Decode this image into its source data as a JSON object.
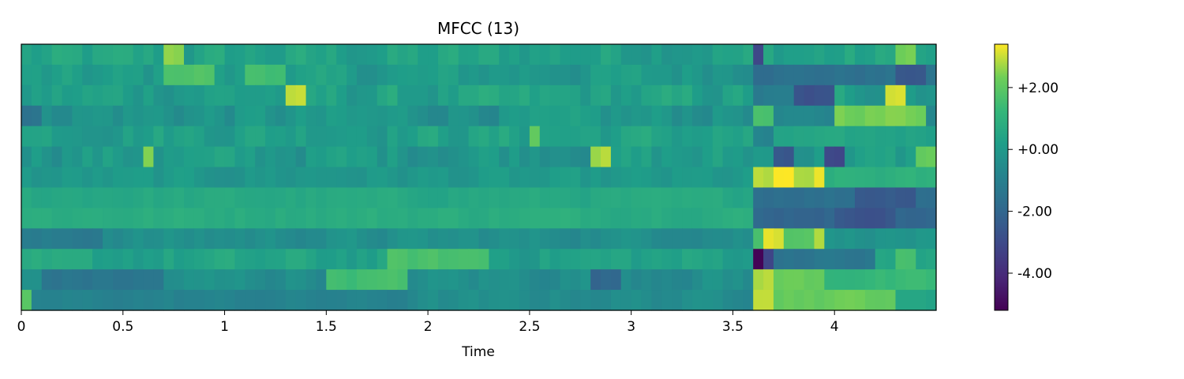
{
  "chart_data": {
    "type": "heatmap",
    "title": "MFCC (13)",
    "xlabel": "Time",
    "ylabel": "",
    "xlim": [
      0,
      4.5
    ],
    "x_ticks": [
      0,
      0.5,
      1,
      1.5,
      2,
      2.5,
      3,
      3.5,
      4
    ],
    "x_tick_labels": [
      "0",
      "0.5",
      "1",
      "1.5",
      "2",
      "2.5",
      "3",
      "3.5",
      "4"
    ],
    "n_coefficients": 13,
    "frame_duration": 0.05,
    "colormap": "viridis",
    "colorbar": {
      "range": [
        -5.2,
        3.4
      ],
      "ticks": [
        2,
        0,
        -2,
        -4
      ],
      "tick_labels": [
        "+2.00",
        "+0.00",
        "-2.00",
        "-4.00"
      ]
    },
    "rows": [
      {
        "base": 0.3,
        "var": 0.9,
        "segments": [
          [
            0.72,
            0.82,
            2.6
          ],
          [
            3.6,
            3.66,
            -3.2
          ],
          [
            4.3,
            4.4,
            2.4
          ]
        ]
      },
      {
        "base": 0.0,
        "var": 0.8,
        "segments": [
          [
            0.7,
            0.95,
            1.8
          ],
          [
            1.1,
            1.3,
            1.6
          ],
          [
            3.6,
            4.5,
            -1.6
          ],
          [
            4.3,
            4.45,
            -2.5
          ]
        ]
      },
      {
        "base": 0.2,
        "var": 0.9,
        "segments": [
          [
            1.3,
            1.38,
            2.8
          ],
          [
            3.6,
            3.8,
            -1.2
          ],
          [
            3.8,
            4.0,
            -2.8
          ],
          [
            4.25,
            4.35,
            3.2
          ]
        ]
      },
      {
        "base": -0.2,
        "var": 0.8,
        "segments": [
          [
            0.0,
            0.1,
            -1.6
          ],
          [
            3.6,
            3.7,
            1.6
          ],
          [
            3.7,
            4.0,
            -0.8
          ],
          [
            4.0,
            4.45,
            2.4
          ]
        ]
      },
      {
        "base": 0.3,
        "var": 0.8,
        "segments": [
          [
            0.28,
            0.32,
            2.6
          ],
          [
            2.5,
            2.56,
            2.2
          ],
          [
            3.6,
            3.7,
            -1.0
          ],
          [
            3.7,
            4.5,
            0.4
          ]
        ]
      },
      {
        "base": 0.0,
        "var": 0.9,
        "segments": [
          [
            0.6,
            0.64,
            2.6
          ],
          [
            2.82,
            2.9,
            2.8
          ],
          [
            3.7,
            3.8,
            -2.5
          ],
          [
            3.95,
            4.05,
            -3.0
          ],
          [
            4.4,
            4.5,
            2.2
          ]
        ]
      },
      {
        "base": -0.1,
        "var": 0.5,
        "segments": [
          [
            3.6,
            3.7,
            2.8
          ],
          [
            3.7,
            3.78,
            3.4
          ],
          [
            3.78,
            3.88,
            2.6
          ],
          [
            3.88,
            3.95,
            3.2
          ],
          [
            3.95,
            4.5,
            0.9
          ]
        ]
      },
      {
        "base": 0.6,
        "var": 0.3,
        "segments": [
          [
            3.6,
            4.5,
            -1.6
          ],
          [
            4.1,
            4.4,
            -2.4
          ]
        ]
      },
      {
        "base": 0.8,
        "var": 0.3,
        "segments": [
          [
            3.6,
            4.5,
            -2.0
          ],
          [
            4.0,
            4.3,
            -2.6
          ]
        ]
      },
      {
        "base": -0.4,
        "var": 0.5,
        "segments": [
          [
            0.0,
            0.4,
            -1.2
          ],
          [
            3.6,
            3.66,
            1.6
          ],
          [
            3.66,
            3.75,
            3.2
          ],
          [
            3.75,
            3.88,
            2.0
          ],
          [
            3.88,
            3.95,
            3.0
          ],
          [
            3.95,
            4.5,
            -0.2
          ]
        ]
      },
      {
        "base": 0.3,
        "var": 0.7,
        "segments": [
          [
            1.8,
            2.3,
            1.6
          ],
          [
            3.6,
            3.65,
            -5.2
          ],
          [
            3.65,
            3.72,
            -3.2
          ],
          [
            3.72,
            4.2,
            -1.4
          ],
          [
            4.3,
            4.4,
            1.6
          ]
        ]
      },
      {
        "base": -0.4,
        "var": 0.6,
        "segments": [
          [
            0.1,
            0.7,
            -1.4
          ],
          [
            1.5,
            1.9,
            1.5
          ],
          [
            2.8,
            2.95,
            -2.0
          ],
          [
            3.62,
            3.7,
            2.8
          ],
          [
            3.7,
            3.95,
            2.2
          ],
          [
            3.95,
            4.5,
            1.2
          ]
        ]
      },
      {
        "base": -0.5,
        "var": 0.4,
        "segments": [
          [
            0.0,
            0.05,
            2.0
          ],
          [
            0.05,
            1.9,
            -0.9
          ],
          [
            3.6,
            3.7,
            3.2
          ],
          [
            3.7,
            4.3,
            2.2
          ],
          [
            4.3,
            4.5,
            0.4
          ]
        ]
      }
    ]
  }
}
